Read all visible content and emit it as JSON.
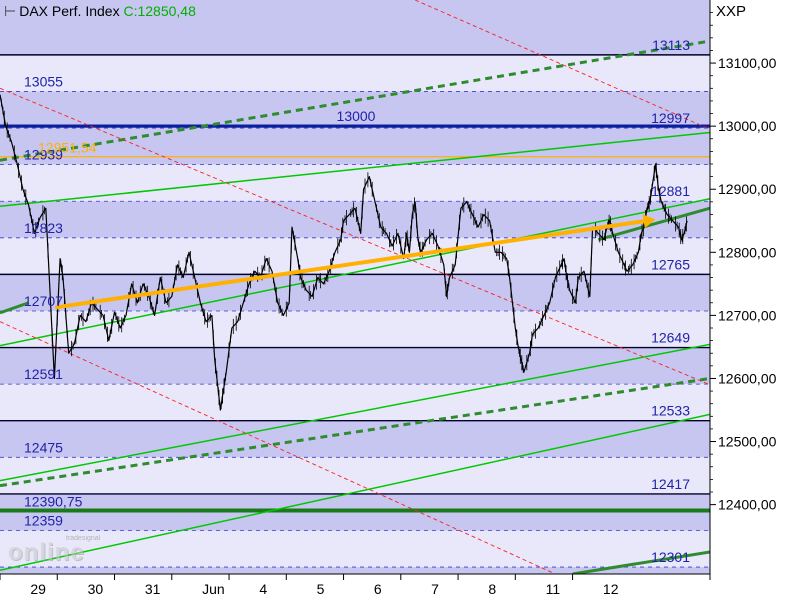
{
  "header": {
    "instrument": "DAX Perf. Index",
    "close_label": "C:12850,48",
    "exchange": "XXP"
  },
  "watermark": {
    "small": "tradesignal",
    "big": "online"
  },
  "colors": {
    "band_dark": "#c6c6f0",
    "band_light": "#e8e8fa",
    "level_label": "#2222aa",
    "price_line": "#000000",
    "resistance": "#00002a",
    "support_green": "#00c800",
    "channel_dark_green": "#2e8b2e",
    "trend_red": "#ff2020",
    "orange": "#ffb000"
  },
  "chart_data": {
    "type": "line",
    "title": "DAX Perf. Index",
    "ylim": [
      12290,
      13200
    ],
    "y_ticks": [
      {
        "value": 12400,
        "label": "12400,00"
      },
      {
        "value": 12500,
        "label": "12500,00"
      },
      {
        "value": 12600,
        "label": "12600,00"
      },
      {
        "value": 12700,
        "label": "12700,00"
      },
      {
        "value": 12800,
        "label": "12800,00"
      },
      {
        "value": 12900,
        "label": "12900,00"
      },
      {
        "value": 13000,
        "label": "13000,00"
      },
      {
        "value": 13100,
        "label": "13100,00"
      }
    ],
    "x_days": [
      {
        "label": "29",
        "index": 0.6
      },
      {
        "label": "30",
        "index": 1.6
      },
      {
        "label": "31",
        "index": 2.6
      },
      {
        "label": "Jun",
        "index": 3.6
      },
      {
        "label": "4",
        "index": 4.6
      },
      {
        "label": "5",
        "index": 5.6
      },
      {
        "label": "6",
        "index": 6.6
      },
      {
        "label": "7",
        "index": 7.6
      },
      {
        "label": "8",
        "index": 8.6
      },
      {
        "label": "11",
        "index": 9.6
      },
      {
        "label": "12",
        "index": 10.6
      }
    ],
    "x_range": [
      0,
      12.4
    ],
    "level_lines": [
      {
        "value": 13113,
        "label": "13113",
        "side": "right"
      },
      {
        "value": 13055,
        "label": "13055",
        "side": "left"
      },
      {
        "value": 13000,
        "label": "13000",
        "side": "center"
      },
      {
        "value": 12997,
        "label": "12997",
        "side": "right"
      },
      {
        "value": 12939,
        "label": "12939",
        "side": "left"
      },
      {
        "value": 12881,
        "label": "12881",
        "side": "right"
      },
      {
        "value": 12823,
        "label": "12823",
        "side": "left"
      },
      {
        "value": 12765,
        "label": "12765",
        "side": "right"
      },
      {
        "value": 12707,
        "label": "12707",
        "side": "left"
      },
      {
        "value": 12649,
        "label": "12649",
        "side": "right"
      },
      {
        "value": 12591,
        "label": "12591",
        "side": "left"
      },
      {
        "value": 12533,
        "label": "12533",
        "side": "right"
      },
      {
        "value": 12475,
        "label": "12475",
        "side": "left"
      },
      {
        "value": 12417,
        "label": "12417",
        "side": "right"
      },
      {
        "value": 12359,
        "label": "12359",
        "side": "left"
      },
      {
        "value": 12301,
        "label": "12301",
        "side": "right"
      }
    ],
    "solid_dark_lines": [
      13113,
      12765,
      12649,
      12533,
      12417
    ],
    "thick_blue_line": 13000,
    "thick_green_line": 12390.75,
    "thick_green_label": "12390,75",
    "orange_level": {
      "value": 12951.54,
      "label": "12951,54"
    },
    "green_support_lines": [
      {
        "x1": 0,
        "y1": 12873,
        "x2": 12.4,
        "y2": 12990
      },
      {
        "x1": 0,
        "y1": 12652,
        "x2": 12.4,
        "y2": 12885
      },
      {
        "x1": 0,
        "y1": 12438,
        "x2": 12.4,
        "y2": 12654
      },
      {
        "x1": 0,
        "y1": 12296,
        "x2": 12.4,
        "y2": 12543
      }
    ],
    "dashed_green_channel": [
      {
        "x1": 0,
        "y1": 12946,
        "x2": 12.4,
        "y2": 13135
      },
      {
        "x1": 0,
        "y1": 12430,
        "x2": 12.4,
        "y2": 12600
      }
    ],
    "solid_dark_green_segments": [
      {
        "x1": 10.45,
        "y1": 12820,
        "x2": 12.4,
        "y2": 12870
      },
      {
        "x1": 0,
        "y1": 12704,
        "x2": 0.5,
        "y2": 12720
      },
      {
        "x1": 10.0,
        "y1": 12290,
        "x2": 12.4,
        "y2": 12325
      }
    ],
    "red_trend_lines": [
      {
        "x1": 7.25,
        "y1": 13200,
        "x2": 12.4,
        "y2": 12995
      },
      {
        "x1": 0,
        "y1": 13060,
        "x2": 12.4,
        "y2": 12590
      },
      {
        "x1": 0,
        "y1": 12690,
        "x2": 9.7,
        "y2": 12290
      }
    ],
    "orange_arrow": {
      "x1": 1.0,
      "y1": 12713,
      "x2": 11.45,
      "y2": 12852
    },
    "series": [
      {
        "values": [
          [
            0.0,
            13050
          ],
          [
            0.1,
            13000
          ],
          [
            0.2,
            12975
          ],
          [
            0.3,
            12940
          ],
          [
            0.4,
            12900
          ],
          [
            0.5,
            12875
          ],
          [
            0.6,
            12830
          ],
          [
            0.7,
            12855
          ],
          [
            0.8,
            12870
          ],
          [
            0.95,
            12600
          ],
          [
            1.05,
            12790
          ],
          [
            1.1,
            12760
          ],
          [
            1.2,
            12640
          ],
          [
            1.3,
            12655
          ],
          [
            1.4,
            12700
          ],
          [
            1.5,
            12690
          ],
          [
            1.6,
            12720
          ],
          [
            1.7,
            12710
          ],
          [
            1.8,
            12700
          ],
          [
            1.9,
            12660
          ],
          [
            2.0,
            12705
          ],
          [
            2.1,
            12680
          ],
          [
            2.2,
            12700
          ],
          [
            2.3,
            12750
          ],
          [
            2.4,
            12720
          ],
          [
            2.5,
            12750
          ],
          [
            2.6,
            12730
          ],
          [
            2.7,
            12700
          ],
          [
            2.8,
            12760
          ],
          [
            2.9,
            12720
          ],
          [
            3.0,
            12730
          ],
          [
            3.1,
            12780
          ],
          [
            3.2,
            12760
          ],
          [
            3.3,
            12800
          ],
          [
            3.4,
            12760
          ],
          [
            3.5,
            12720
          ],
          [
            3.6,
            12690
          ],
          [
            3.7,
            12700
          ],
          [
            3.75,
            12630
          ],
          [
            3.8,
            12590
          ],
          [
            3.85,
            12550
          ],
          [
            3.9,
            12580
          ],
          [
            3.95,
            12610
          ],
          [
            4.05,
            12680
          ],
          [
            4.15,
            12690
          ],
          [
            4.25,
            12720
          ],
          [
            4.35,
            12750
          ],
          [
            4.45,
            12770
          ],
          [
            4.55,
            12760
          ],
          [
            4.65,
            12790
          ],
          [
            4.75,
            12770
          ],
          [
            4.85,
            12720
          ],
          [
            4.95,
            12700
          ],
          [
            5.05,
            12720
          ],
          [
            5.1,
            12840
          ],
          [
            5.2,
            12790
          ],
          [
            5.25,
            12760
          ],
          [
            5.35,
            12740
          ],
          [
            5.45,
            12730
          ],
          [
            5.55,
            12760
          ],
          [
            5.65,
            12750
          ],
          [
            5.75,
            12770
          ],
          [
            5.85,
            12800
          ],
          [
            5.95,
            12820
          ],
          [
            6.0,
            12850
          ],
          [
            6.1,
            12860
          ],
          [
            6.2,
            12870
          ],
          [
            6.3,
            12830
          ],
          [
            6.35,
            12900
          ],
          [
            6.45,
            12920
          ],
          [
            6.55,
            12880
          ],
          [
            6.65,
            12840
          ],
          [
            6.75,
            12830
          ],
          [
            6.85,
            12810
          ],
          [
            6.95,
            12830
          ],
          [
            7.05,
            12790
          ],
          [
            7.1,
            12830
          ],
          [
            7.15,
            12800
          ],
          [
            7.2,
            12860
          ],
          [
            7.25,
            12880
          ],
          [
            7.3,
            12820
          ],
          [
            7.35,
            12800
          ],
          [
            7.45,
            12820
          ],
          [
            7.55,
            12830
          ],
          [
            7.65,
            12810
          ],
          [
            7.75,
            12780
          ],
          [
            7.8,
            12730
          ],
          [
            7.85,
            12760
          ],
          [
            7.95,
            12780
          ],
          [
            8.05,
            12870
          ],
          [
            8.15,
            12880
          ],
          [
            8.25,
            12860
          ],
          [
            8.35,
            12840
          ],
          [
            8.45,
            12860
          ],
          [
            8.55,
            12850
          ],
          [
            8.65,
            12800
          ],
          [
            8.75,
            12800
          ],
          [
            8.85,
            12790
          ],
          [
            8.9,
            12760
          ],
          [
            9.0,
            12680
          ],
          [
            9.05,
            12650
          ],
          [
            9.1,
            12630
          ],
          [
            9.15,
            12610
          ],
          [
            9.25,
            12640
          ],
          [
            9.3,
            12670
          ],
          [
            9.4,
            12680
          ],
          [
            9.5,
            12700
          ],
          [
            9.6,
            12720
          ],
          [
            9.7,
            12760
          ],
          [
            9.8,
            12780
          ],
          [
            9.85,
            12790
          ],
          [
            9.9,
            12760
          ],
          [
            9.95,
            12740
          ],
          [
            10.05,
            12720
          ],
          [
            10.1,
            12760
          ],
          [
            10.2,
            12770
          ],
          [
            10.3,
            12730
          ],
          [
            10.35,
            12840
          ],
          [
            10.45,
            12830
          ],
          [
            10.55,
            12820
          ],
          [
            10.6,
            12840
          ],
          [
            10.65,
            12850
          ],
          [
            10.7,
            12830
          ],
          [
            10.8,
            12800
          ],
          [
            10.9,
            12780
          ],
          [
            10.95,
            12770
          ],
          [
            11.05,
            12780
          ],
          [
            11.15,
            12800
          ],
          [
            11.2,
            12830
          ],
          [
            11.25,
            12840
          ],
          [
            11.3,
            12870
          ],
          [
            11.35,
            12880
          ],
          [
            11.4,
            12910
          ],
          [
            11.45,
            12940
          ],
          [
            11.5,
            12900
          ],
          [
            11.55,
            12880
          ],
          [
            11.65,
            12860
          ],
          [
            11.75,
            12850
          ],
          [
            11.85,
            12840
          ],
          [
            11.9,
            12820
          ],
          [
            11.95,
            12830
          ],
          [
            12.0,
            12850
          ]
        ]
      }
    ]
  }
}
